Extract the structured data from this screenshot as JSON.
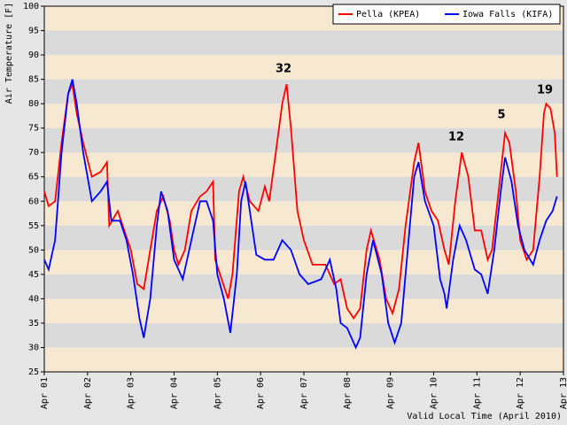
{
  "chart_data": {
    "type": "line",
    "ylabel": "Air Temperature [F]",
    "xlabel": "Valid Local Time (April 2010)",
    "xlim": [
      1,
      13
    ],
    "ylim": [
      25,
      100
    ],
    "yticks": [
      25,
      30,
      35,
      40,
      45,
      50,
      55,
      60,
      65,
      70,
      75,
      80,
      85,
      90,
      95,
      100
    ],
    "xticks": [
      {
        "value": 1,
        "label": "Apr 01"
      },
      {
        "value": 2,
        "label": "Apr 02"
      },
      {
        "value": 3,
        "label": "Apr 03"
      },
      {
        "value": 4,
        "label": "Apr 04"
      },
      {
        "value": 5,
        "label": "Apr 05"
      },
      {
        "value": 6,
        "label": "Apr 06"
      },
      {
        "value": 7,
        "label": "Apr 07"
      },
      {
        "value": 8,
        "label": "Apr 08"
      },
      {
        "value": 9,
        "label": "Apr 09"
      },
      {
        "value": 10,
        "label": "Apr 10"
      },
      {
        "value": 11,
        "label": "Apr 11"
      },
      {
        "value": 12,
        "label": "Apr 12"
      },
      {
        "value": 13,
        "label": "Apr 13"
      }
    ],
    "band_colors": [
      "#f7e8d2",
      "#dadada"
    ],
    "legend": "upper right",
    "annotations": [
      "32",
      "12",
      "5",
      "19"
    ],
    "series": [
      {
        "name": "Pella (KPEA)",
        "color": "#ff0000",
        "x": [
          1.0,
          1.1,
          1.25,
          1.4,
          1.55,
          1.65,
          1.75,
          1.9,
          2.1,
          2.3,
          2.45,
          2.5,
          2.7,
          2.85,
          3.0,
          3.15,
          3.3,
          3.45,
          3.6,
          3.75,
          3.9,
          4.0,
          4.1,
          4.25,
          4.4,
          4.6,
          4.75,
          4.9,
          4.95,
          5.1,
          5.25,
          5.35,
          5.5,
          5.6,
          5.75,
          5.95,
          6.1,
          6.2,
          6.35,
          6.5,
          6.6,
          6.7,
          6.85,
          7.0,
          7.2,
          7.5,
          7.7,
          7.85,
          8.0,
          8.15,
          8.3,
          8.45,
          8.55,
          8.75,
          8.9,
          9.05,
          9.2,
          9.35,
          9.55,
          9.65,
          9.8,
          9.95,
          10.1,
          10.25,
          10.35,
          10.5,
          10.65,
          10.8,
          10.95,
          11.1,
          11.25,
          11.35,
          11.5,
          11.65,
          11.75,
          11.9,
          12.0,
          12.15,
          12.3,
          12.45,
          12.55,
          12.6,
          12.7,
          12.8,
          12.85
        ],
        "values": [
          62,
          59,
          60,
          72,
          82,
          84,
          78,
          72,
          65,
          66,
          68,
          55,
          58,
          54,
          50,
          43,
          42,
          50,
          58,
          61,
          56,
          50,
          47,
          50,
          58,
          61,
          62,
          64,
          48,
          44,
          40,
          45,
          62,
          65,
          60,
          58,
          63,
          60,
          70,
          80,
          84,
          75,
          58,
          52,
          47,
          47,
          43,
          44,
          38,
          36,
          38,
          50,
          54,
          48,
          40,
          37,
          42,
          55,
          68,
          72,
          62,
          58,
          56,
          50,
          47,
          60,
          70,
          65,
          54,
          54,
          48,
          50,
          62,
          74,
          72,
          62,
          52,
          48,
          50,
          65,
          78,
          80,
          79,
          74,
          65
        ]
      },
      {
        "name": "Iowa Falls (KIFA)",
        "color": "#0000ff",
        "x": [
          1.0,
          1.1,
          1.25,
          1.4,
          1.55,
          1.65,
          1.75,
          1.9,
          2.1,
          2.3,
          2.45,
          2.55,
          2.75,
          2.9,
          3.05,
          3.2,
          3.3,
          3.45,
          3.6,
          3.7,
          3.85,
          4.0,
          4.2,
          4.4,
          4.6,
          4.75,
          4.9,
          5.0,
          5.15,
          5.3,
          5.45,
          5.55,
          5.65,
          5.8,
          5.9,
          6.1,
          6.3,
          6.5,
          6.7,
          6.9,
          7.1,
          7.4,
          7.6,
          7.75,
          7.85,
          8.0,
          8.2,
          8.3,
          8.45,
          8.6,
          8.8,
          8.95,
          9.1,
          9.25,
          9.4,
          9.55,
          9.65,
          9.8,
          10.0,
          10.15,
          10.25,
          10.3,
          10.45,
          10.6,
          10.75,
          10.95,
          11.1,
          11.25,
          11.4,
          11.55,
          11.65,
          11.8,
          11.95,
          12.1,
          12.3,
          12.45,
          12.6,
          12.75,
          12.85
        ],
        "values": [
          48,
          46,
          52,
          70,
          82,
          85,
          80,
          70,
          60,
          62,
          64,
          56,
          56,
          52,
          45,
          36,
          32,
          40,
          55,
          62,
          58,
          48,
          44,
          52,
          60,
          60,
          56,
          45,
          40,
          33,
          45,
          60,
          64,
          55,
          49,
          48,
          48,
          52,
          50,
          45,
          43,
          44,
          48,
          42,
          35,
          34,
          30,
          32,
          45,
          52,
          45,
          35,
          31,
          35,
          50,
          65,
          68,
          60,
          55,
          44,
          41,
          38,
          48,
          55,
          52,
          46,
          45,
          41,
          50,
          62,
          69,
          64,
          55,
          50,
          47,
          52,
          56,
          58,
          61
        ]
      }
    ]
  }
}
